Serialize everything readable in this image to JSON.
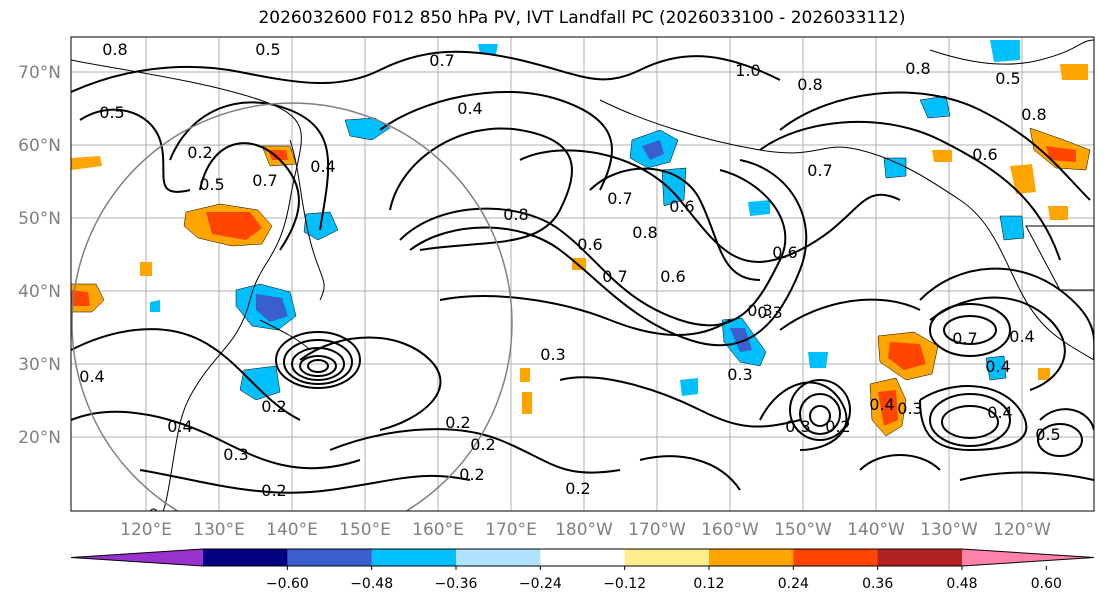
{
  "title": "2026032600 F012 850 hPa PV, IVT Landfall PC (2026033100 - 2026033112)",
  "map": {
    "lat_ticks": [
      "20°N",
      "30°N",
      "40°N",
      "50°N",
      "60°N",
      "70°N"
    ],
    "lon_ticks": [
      "120°E",
      "130°E",
      "140°E",
      "150°E",
      "160°E",
      "170°E",
      "180°W",
      "170°W",
      "160°W",
      "150°W",
      "140°W",
      "130°W",
      "120°W"
    ],
    "contour_labels": [
      "0.8",
      "0.5",
      "0.7",
      "0.4",
      "1.0",
      "0.8",
      "0.8",
      "0.5",
      "0.2",
      "0.7",
      "0.4",
      "0.6",
      "0.6",
      "0.8",
      "0.7",
      "0.6",
      "0.5",
      "0.3",
      "0.3",
      "0.3",
      "0.2",
      "0.4",
      "0.4",
      "0.2",
      "0.2",
      "0.2",
      "0.2",
      "0.3",
      "0.2",
      "0.4",
      "0.2",
      "0.3",
      "0.3",
      "0.4",
      "0.7",
      "0.4",
      "0.8",
      "0.4",
      "0.5",
      "0.8",
      "0.7",
      "0.6",
      "0.5",
      "0.7",
      "0.6",
      "0.3"
    ]
  },
  "colorbar": {
    "ticks": [
      "−0.60",
      "−0.48",
      "−0.36",
      "−0.24",
      "−0.12",
      "0.12",
      "0.24",
      "0.36",
      "0.48",
      "0.60"
    ],
    "colors": [
      "#9932cc",
      "#000080",
      "#3a5fcd",
      "#00bfff",
      "#b0e2ff",
      "#ffffff",
      "#ffec8b",
      "#ffa500",
      "#ff4500",
      "#b22222",
      "#ff82ab"
    ]
  }
}
